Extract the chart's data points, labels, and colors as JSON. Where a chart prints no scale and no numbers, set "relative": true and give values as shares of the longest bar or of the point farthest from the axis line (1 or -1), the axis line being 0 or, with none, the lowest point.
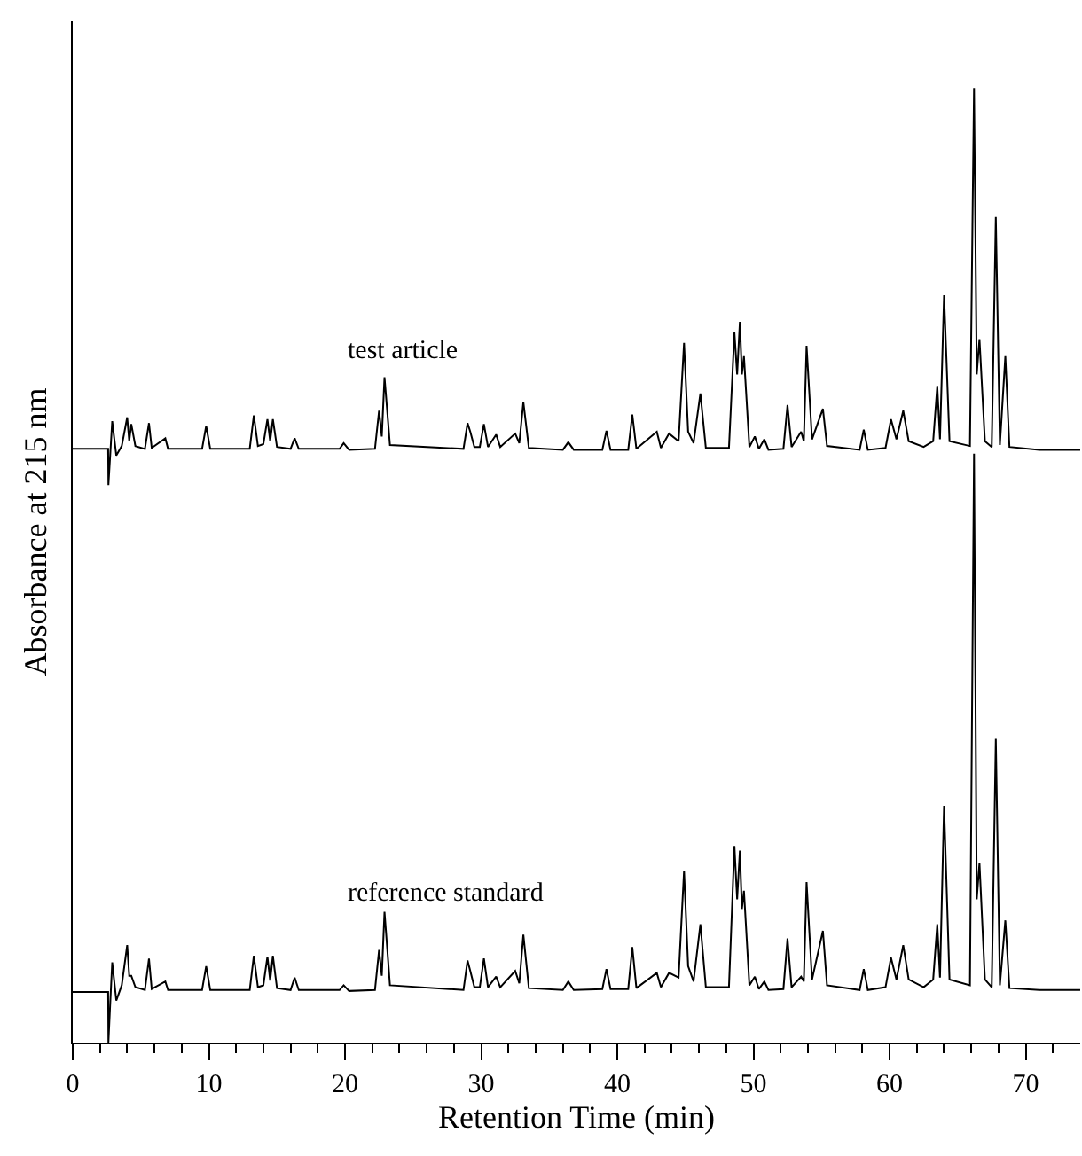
{
  "chart_data": {
    "type": "line",
    "xlabel": "Retention Time (min)",
    "ylabel": "Absorbance at 215 nm",
    "relative": true,
    "tick_labels": "x",
    "xlim": [
      0,
      74
    ],
    "xticks": [
      0,
      {
        "value": 2,
        "label": null
      },
      {
        "value": 4,
        "label": null
      },
      {
        "value": 6,
        "label": null
      },
      {
        "value": 8,
        "label": null
      },
      10,
      {
        "value": 12,
        "label": null
      },
      {
        "value": 14,
        "label": null
      },
      {
        "value": 16,
        "label": null
      },
      {
        "value": 18,
        "label": null
      },
      20,
      {
        "value": 22,
        "label": null
      },
      {
        "value": 24,
        "label": null
      },
      {
        "value": 26,
        "label": null
      },
      {
        "value": 28,
        "label": null
      },
      30,
      {
        "value": 32,
        "label": null
      },
      {
        "value": 34,
        "label": null
      },
      {
        "value": 36,
        "label": null
      },
      {
        "value": 38,
        "label": null
      },
      40,
      {
        "value": 42,
        "label": null
      },
      {
        "value": 44,
        "label": null
      },
      {
        "value": 46,
        "label": null
      },
      {
        "value": 48,
        "label": null
      },
      50,
      {
        "value": 52,
        "label": null
      },
      {
        "value": 54,
        "label": null
      },
      {
        "value": 56,
        "label": null
      },
      {
        "value": 58,
        "label": null
      },
      60,
      {
        "value": 62,
        "label": null
      },
      {
        "value": 64,
        "label": null
      },
      {
        "value": 66,
        "label": null
      },
      {
        "value": 68,
        "label": null
      },
      70,
      {
        "value": 72,
        "label": null
      }
    ],
    "x": [
      0,
      2.6,
      2.62,
      2.75,
      2.9,
      3.2,
      3.6,
      4.0,
      4.15,
      4.3,
      4.6,
      5.3,
      5.6,
      5.8,
      6.8,
      7.0,
      9.5,
      9.8,
      10.1,
      13.0,
      13.3,
      13.6,
      14.0,
      14.3,
      14.5,
      14.7,
      15.0,
      16.0,
      16.3,
      16.6,
      19.6,
      19.9,
      20.3,
      22.2,
      22.5,
      22.7,
      22.9,
      23.3,
      28.7,
      29.0,
      29.2,
      29.5,
      29.9,
      30.2,
      30.5,
      31.1,
      31.4,
      32.5,
      32.8,
      33.1,
      33.5,
      36.0,
      36.4,
      36.8,
      38.9,
      39.2,
      39.5,
      40.8,
      41.1,
      41.4,
      42.9,
      43.2,
      43.8,
      44.5,
      44.9,
      45.2,
      45.6,
      46.1,
      46.5,
      48.2,
      48.6,
      48.8,
      49.0,
      49.15,
      49.3,
      49.7,
      50.1,
      50.4,
      50.8,
      51.1,
      52.2,
      52.5,
      52.8,
      53.5,
      53.7,
      53.9,
      54.3,
      55.1,
      55.4,
      57.8,
      58.1,
      58.4,
      59.7,
      60.1,
      60.5,
      61.0,
      61.4,
      62.5,
      63.2,
      63.5,
      63.7,
      64.0,
      64.4,
      65.9,
      66.2,
      66.4,
      66.6,
      67.0,
      67.5,
      67.8,
      68.1,
      68.5,
      68.8,
      71.0,
      74
    ],
    "series": [
      {
        "name": "test article",
        "color": "#000000",
        "values": [
          0.622,
          0.622,
          0.584,
          0.615,
          0.651,
          0.615,
          0.625,
          0.655,
          0.63,
          0.648,
          0.625,
          0.622,
          0.649,
          0.623,
          0.633,
          0.622,
          0.622,
          0.646,
          0.622,
          0.622,
          0.657,
          0.625,
          0.627,
          0.653,
          0.63,
          0.653,
          0.624,
          0.622,
          0.633,
          0.622,
          0.622,
          0.628,
          0.621,
          0.622,
          0.662,
          0.635,
          0.697,
          0.626,
          0.622,
          0.649,
          0.64,
          0.624,
          0.624,
          0.648,
          0.624,
          0.637,
          0.624,
          0.638,
          0.628,
          0.671,
          0.623,
          0.621,
          0.629,
          0.621,
          0.621,
          0.641,
          0.621,
          0.621,
          0.658,
          0.622,
          0.64,
          0.623,
          0.638,
          0.63,
          0.733,
          0.64,
          0.628,
          0.68,
          0.623,
          0.623,
          0.744,
          0.7,
          0.755,
          0.7,
          0.719,
          0.624,
          0.635,
          0.622,
          0.632,
          0.621,
          0.622,
          0.668,
          0.624,
          0.64,
          0.63,
          0.73,
          0.632,
          0.664,
          0.625,
          0.621,
          0.642,
          0.621,
          0.623,
          0.653,
          0.632,
          0.662,
          0.63,
          0.624,
          0.63,
          0.688,
          0.632,
          0.783,
          0.63,
          0.625,
          1.0,
          0.7,
          0.737,
          0.63,
          0.624,
          0.865,
          0.626,
          0.719,
          0.624,
          0.621,
          0.621
        ]
      },
      {
        "name": "reference standard",
        "color": "#000000",
        "values": [
          0.053,
          0.053,
          0.0,
          0.04,
          0.084,
          0.044,
          0.06,
          0.102,
          0.07,
          0.07,
          0.058,
          0.055,
          0.088,
          0.056,
          0.064,
          0.055,
          0.055,
          0.08,
          0.055,
          0.055,
          0.091,
          0.058,
          0.06,
          0.09,
          0.065,
          0.091,
          0.057,
          0.055,
          0.068,
          0.055,
          0.055,
          0.06,
          0.054,
          0.055,
          0.097,
          0.07,
          0.137,
          0.06,
          0.055,
          0.086,
          0.075,
          0.058,
          0.058,
          0.088,
          0.058,
          0.069,
          0.058,
          0.075,
          0.062,
          0.113,
          0.057,
          0.055,
          0.064,
          0.055,
          0.056,
          0.077,
          0.056,
          0.056,
          0.1,
          0.057,
          0.073,
          0.058,
          0.073,
          0.068,
          0.18,
          0.08,
          0.064,
          0.124,
          0.058,
          0.058,
          0.206,
          0.15,
          0.201,
          0.14,
          0.159,
          0.06,
          0.069,
          0.056,
          0.064,
          0.055,
          0.056,
          0.109,
          0.058,
          0.069,
          0.064,
          0.168,
          0.066,
          0.117,
          0.06,
          0.055,
          0.077,
          0.055,
          0.058,
          0.089,
          0.066,
          0.102,
          0.066,
          0.058,
          0.066,
          0.124,
          0.068,
          0.248,
          0.066,
          0.06,
          0.617,
          0.15,
          0.188,
          0.066,
          0.058,
          0.318,
          0.06,
          0.128,
          0.057,
          0.055,
          0.055
        ]
      }
    ]
  }
}
